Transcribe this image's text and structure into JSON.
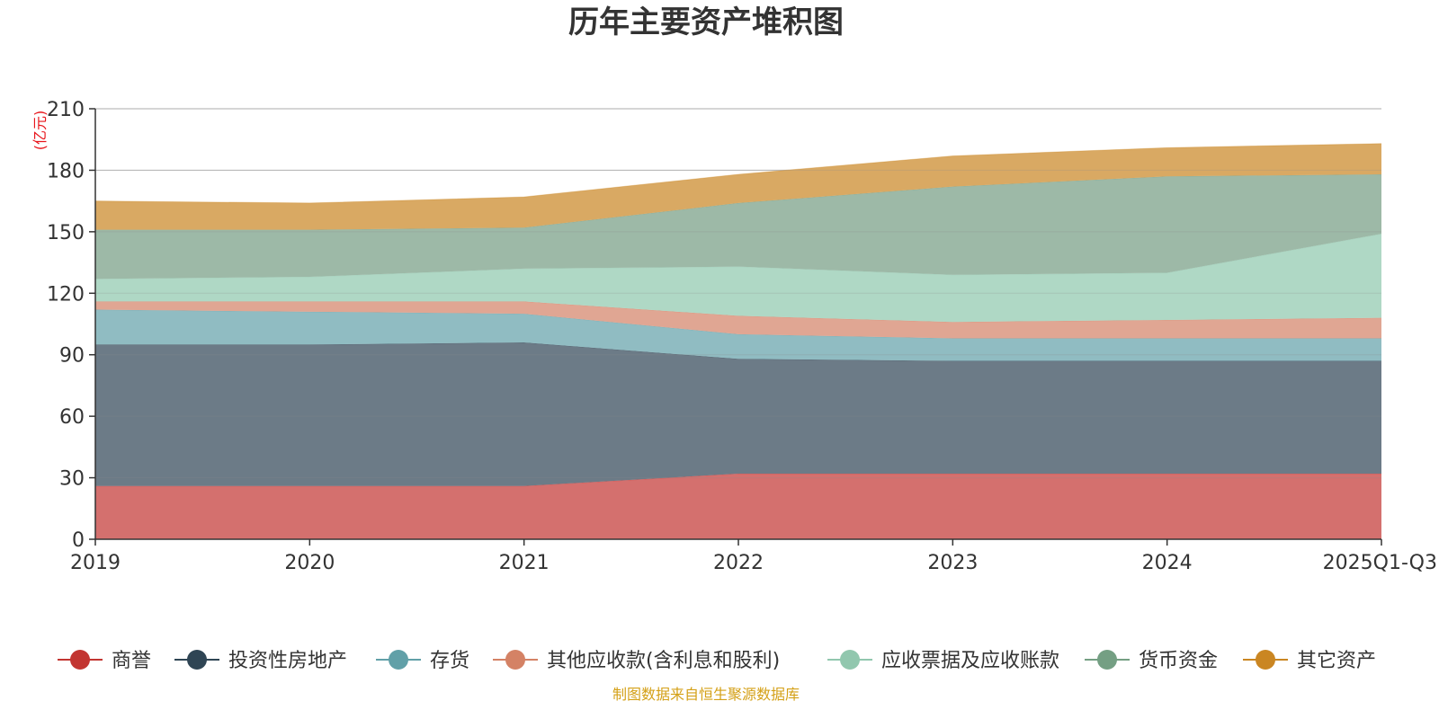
{
  "chart_data": {
    "type": "area",
    "stacked": true,
    "title": "历年主要资产堆积图",
    "unit_label": "(亿元)",
    "categories": [
      "2019",
      "2020",
      "2021",
      "2022",
      "2023",
      "2024",
      "2025Q1-Q3"
    ],
    "ylim": [
      0,
      210
    ],
    "yticks": [
      0,
      30,
      60,
      90,
      120,
      150,
      180,
      210
    ],
    "ytick_labels": [
      "0",
      "30",
      "60",
      "90",
      "120",
      "150",
      "180",
      "210"
    ],
    "grid": true,
    "legend_position": "bottom",
    "source": "制图数据来自恒生聚源数据库",
    "series": [
      {
        "name": "商誉",
        "color": "#c23531",
        "fill": "#d4706e",
        "values": [
          26,
          26,
          26,
          32,
          32,
          32,
          32
        ]
      },
      {
        "name": "投资性房地产",
        "color": "#2f4554",
        "fill": "#6c7b87",
        "values": [
          69,
          69,
          70,
          56,
          55,
          55,
          55
        ]
      },
      {
        "name": "存货",
        "color": "#61a0a8",
        "fill": "#90bcc2",
        "values": [
          17,
          16,
          14,
          12,
          11,
          11,
          11
        ]
      },
      {
        "name": "其他应收款(含利息和股利)",
        "color": "#d48265",
        "fill": "#e0a693",
        "values": [
          4,
          5,
          6,
          9,
          8,
          9,
          10
        ]
      },
      {
        "name": "应收票据及应收账款",
        "color": "#91c7ae",
        "fill": "#afd8c5",
        "values": [
          11,
          12,
          16,
          24,
          23,
          23,
          41
        ]
      },
      {
        "name": "货币资金",
        "color": "#749f83",
        "fill": "#9db9a7",
        "values": [
          24,
          23,
          20,
          31,
          43,
          47,
          29
        ]
      },
      {
        "name": "其它资产",
        "color": "#ca8622",
        "fill": "#d9a963",
        "values": [
          14,
          13,
          15,
          14,
          15,
          14,
          15
        ]
      }
    ]
  }
}
